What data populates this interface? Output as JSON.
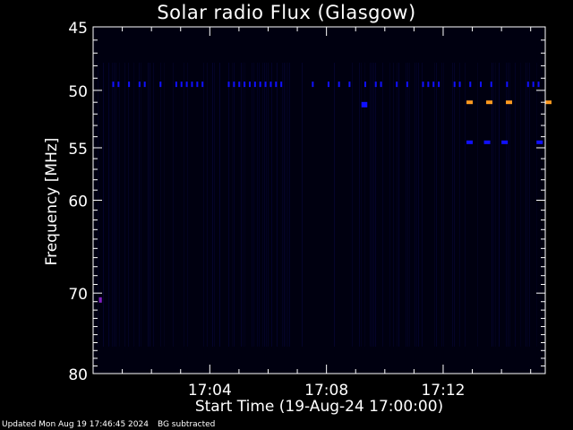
{
  "chart_data": {
    "type": "heatmap",
    "title": "Solar radio Flux (Glasgow)",
    "xlabel": "Start Time (19-Aug-24 17:00:00)",
    "ylabel": "Frequency [MHz]",
    "x_unit": "minutes after 17:00:00",
    "xlim": [
      0,
      15.5
    ],
    "x_ticks": [
      {
        "value": 4,
        "label": "17:04"
      },
      {
        "value": 8,
        "label": "17:08"
      },
      {
        "value": 12,
        "label": "17:12"
      }
    ],
    "ylim": [
      45,
      80
    ],
    "y_axis_inverted": true,
    "y_scale": "log",
    "y_ticks": [
      {
        "value": 45,
        "label": "45"
      },
      {
        "value": 50,
        "label": "50"
      },
      {
        "value": 55,
        "label": "55"
      },
      {
        "value": 60,
        "label": "60"
      },
      {
        "value": 70,
        "label": "70"
      },
      {
        "value": 80,
        "label": "80"
      }
    ],
    "background_color": "#000010",
    "colormap": [
      "#000010",
      "#0a0a5a",
      "#1010ff",
      "#8020c0",
      "#ff9a20"
    ],
    "features": [
      {
        "name": "interference line",
        "freq_mhz": 49.5,
        "t_start": 0.3,
        "t_end": 15.5,
        "intensity": "medium"
      },
      {
        "name": "burst markers",
        "freq_mhz": 51.0,
        "t_start": 12.8,
        "t_end": 15.5,
        "intensity": "high"
      },
      {
        "name": "burst markers",
        "freq_mhz": 54.5,
        "t_start": 12.8,
        "t_end": 15.2,
        "intensity": "medium"
      },
      {
        "name": "spot",
        "freq_mhz": 51.2,
        "t_start": 9.2,
        "t_end": 9.4,
        "intensity": "medium"
      },
      {
        "name": "spot",
        "freq_mhz": 70.8,
        "t_start": 0.2,
        "t_end": 0.3,
        "intensity": "medium-high"
      }
    ]
  },
  "footer": {
    "updated": "Updated Mon Aug 19 17:46:45 2024",
    "note": "BG subtracted"
  }
}
